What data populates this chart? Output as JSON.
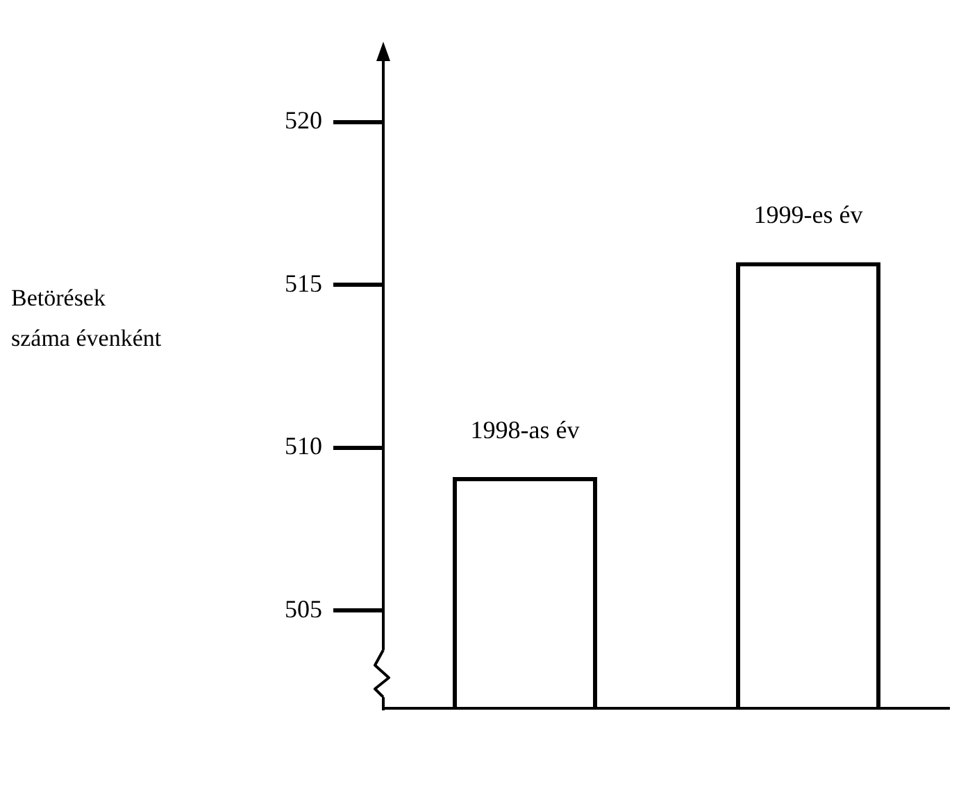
{
  "chart_data": {
    "type": "bar",
    "annotations": [
      "Betörések\nszáma évenként"
    ],
    "categories": [
      "1998-as év",
      "1999-es év"
    ],
    "values": [
      509.1,
      515.7
    ],
    "color": "#000000",
    "ylim": [
      502,
      522
    ],
    "yticks": [
      505,
      510,
      515,
      520
    ],
    "grid": false,
    "legend": false
  }
}
